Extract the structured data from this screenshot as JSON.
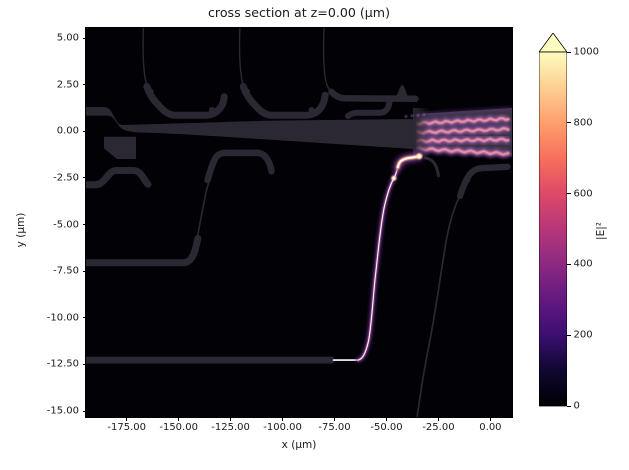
{
  "figure": {
    "title": "cross section at z=0.00 (μm)",
    "background": "#ffffff",
    "plot_background": "#000004"
  },
  "axes": {
    "xlabel": "x (μm)",
    "ylabel": "y (μm)",
    "xtick_labels": [
      "-175.00",
      "-150.00",
      "-125.00",
      "-100.00",
      "-75.00",
      "-50.00",
      "-25.00",
      "0.00"
    ],
    "ytick_labels": [
      "5.00",
      "2.50",
      "0.00",
      "-2.50",
      "-5.00",
      "-7.50",
      "-10.00",
      "-12.50",
      "-15.00"
    ]
  },
  "colorbar": {
    "label": "|E|²",
    "tick_labels": [
      "0",
      "200",
      "400",
      "600",
      "800",
      "1000"
    ],
    "vmin": 0,
    "vmax": 1000,
    "extend": "max",
    "colormap": "magma",
    "arrow_color": "#fcfdbf"
  },
  "colors": {
    "structure_gray": "#2c2833",
    "mmi_base_purple": "#393241",
    "stripe_pink": "#d4728f",
    "stripe_purple": "#8a54ae",
    "field_core_white": "#ffffff",
    "field_glow_yellow": "#ffdca2",
    "field_glow_orange": "#f07c50",
    "field_halo_purple": "#6b3d98"
  },
  "chart_data": {
    "type": "heatmap",
    "title": "cross section at z=0.00 (μm)",
    "xlabel": "x (μm)",
    "ylabel": "y (μm)",
    "xlim": [
      -194.6,
      10.4
    ],
    "ylim": [
      -15.3,
      5.54
    ],
    "xticks": [
      -175,
      -150,
      -125,
      -100,
      -75,
      -50,
      -25,
      0
    ],
    "yticks": [
      5,
      2.5,
      0,
      -2.5,
      -5,
      -7.5,
      -10,
      -12.5,
      -15
    ],
    "colormap": "magma",
    "vmin": 0,
    "vmax": 1000,
    "colorbar_label": "|E|²",
    "colorbar_extend": "max",
    "grid": false,
    "legend": "none",
    "description": "Simulated optical field intensity |E|² at z=0 over a photonic integrated circuit layout. Waveguide geometry appears as faint dark-gray outlines (intensity ~20-40). Light enters on a narrow waveguide at y≈-12.35, follows a steep S-bend up to y≈-1.3 (saturated, ≥1000), and couples into a wide multimode waveguide centered near y≈0 that shows 4 interference lobes (intensity ~200-700) extending to the right edge.",
    "features": [
      {
        "name": "input_field_segment",
        "kind": "bright_line",
        "y": -12.35,
        "x_range": [
          -75.5,
          -64
        ],
        "peak_intensity": 1000
      },
      {
        "name": "s_bend_field",
        "kind": "bright_curve",
        "points": [
          [
            -64,
            -12.35
          ],
          [
            -59,
            -9
          ],
          [
            -56.5,
            -6.4
          ],
          [
            -53,
            -4.2
          ],
          [
            -49,
            -2.8
          ],
          [
            -46.4,
            -2.4
          ],
          [
            -44,
            -1.8
          ],
          [
            -40,
            -1.5
          ],
          [
            -34,
            -1.3
          ]
        ],
        "peak_intensity": 1000
      },
      {
        "name": "multimode_interference_region",
        "kind": "striated_field",
        "x_range": [
          -35.5,
          10.4
        ],
        "y_range": [
          -1.4,
          1.3
        ],
        "num_lobes": 4,
        "lobe_y_centers": [
          0.9,
          0.3,
          -0.3,
          -0.9
        ],
        "intensity_range": [
          200,
          700
        ]
      },
      {
        "name": "bus_taper",
        "kind": "structure",
        "x_range": [
          -194.6,
          -35.5
        ],
        "y_center": 0.1,
        "width_range": [
          0.55,
          1.6
        ]
      },
      {
        "name": "top_feeder_bends",
        "kind": "structure",
        "feeder_x": [
          -167,
          -120.5,
          -79.5
        ],
        "basin_y": 0.85,
        "basin_x_ranges": [
          [
            -158,
            -133
          ],
          [
            -111,
            -87
          ],
          [
            -68.5,
            -52
          ]
        ]
      },
      {
        "name": "upper_band",
        "kind": "structure",
        "y": 1.75,
        "x_range": [
          -73.5,
          -36
        ]
      },
      {
        "name": "pad_rectangle",
        "kind": "structure",
        "x_range": [
          -185,
          -170.5
        ],
        "y_range": [
          -1.45,
          -0.25
        ]
      },
      {
        "name": "mesa_left",
        "kind": "structure",
        "x_range": [
          -194.6,
          -166
        ],
        "y_plateau": -2.1
      },
      {
        "name": "mesa_center",
        "kind": "structure",
        "x_range": [
          -136,
          -108.5
        ],
        "y_plateau": -1.15
      },
      {
        "name": "bar_y_minus7",
        "kind": "structure",
        "y": -7.05,
        "x_range": [
          -194.6,
          -145
        ]
      },
      {
        "name": "input_waveguide",
        "kind": "structure",
        "y": -12.35,
        "x_range": [
          -194.6,
          -75.5
        ]
      },
      {
        "name": "right_diagonal_route",
        "kind": "structure",
        "points": [
          [
            -35.3,
            -15.3
          ],
          [
            -22,
            -6
          ],
          [
            -15,
            -2.5
          ],
          [
            -10,
            -1.9
          ],
          [
            9,
            -1.8
          ]
        ]
      }
    ]
  }
}
